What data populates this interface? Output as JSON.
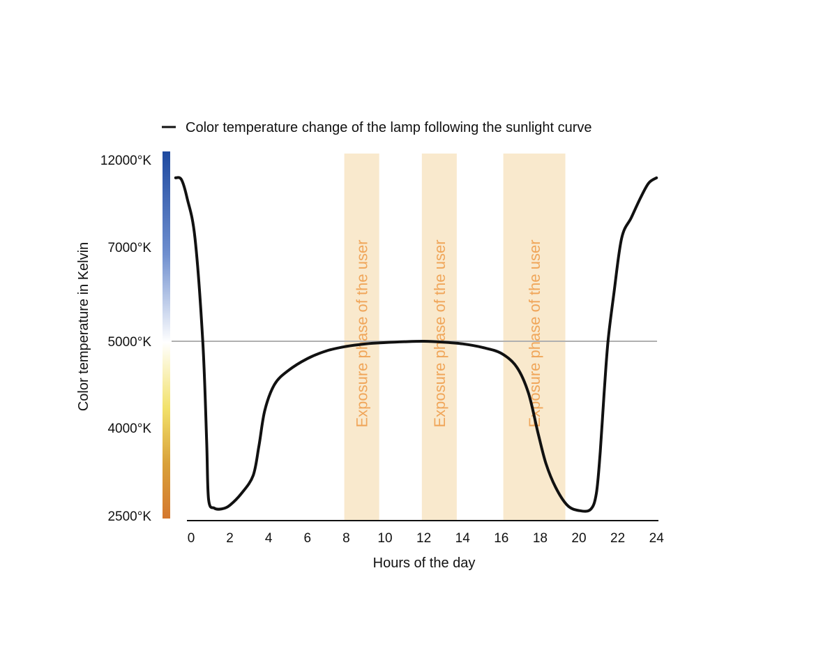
{
  "chart_data": {
    "type": "line",
    "legend": {
      "label": "Color temperature change of the lamp following the sunlight curve",
      "placement": "top-left",
      "color": "#111111"
    },
    "xlabel": "Hours of the day",
    "ylabel": "Color temperature  in Kelvin",
    "xlim": [
      -0.8,
      24
    ],
    "x_ticks": [
      "0",
      "2",
      "4",
      "6",
      "8",
      "10",
      "12",
      "14",
      "16",
      "18",
      "20",
      "22",
      "24"
    ],
    "y_ticks": [
      {
        "label": "12000°K",
        "value": 12000
      },
      {
        "label": "7000°K",
        "value": 7000
      },
      {
        "label": "5000°K",
        "value": 5000
      },
      {
        "label": "4000°K",
        "value": 4000
      },
      {
        "label": "2500°K",
        "value": 2500
      }
    ],
    "reference_line": {
      "value": 5000,
      "color": "#b0b0b0"
    },
    "temperature_scale_colors": [
      "#1f4aa0",
      "#6f8fcf",
      "#ffffff",
      "#f2e16a",
      "#d9a13a",
      "#d4782f"
    ],
    "highlight_bands": [
      {
        "label": "Exposure phase of the user",
        "x_start": 7.9,
        "x_end": 9.7,
        "color": "#f9e9cd"
      },
      {
        "label": "Exposure phase of the user",
        "x_start": 11.9,
        "x_end": 13.7,
        "color": "#f9e9cd"
      },
      {
        "label": "Exposure phase of the user",
        "x_start": 16.1,
        "x_end": 19.3,
        "color": "#f9e9cd"
      }
    ],
    "series": [
      {
        "color": "#111111",
        "points": [
          [
            -0.8,
            11000
          ],
          [
            -0.5,
            10900
          ],
          [
            -0.2,
            9800
          ],
          [
            0.2,
            7500
          ],
          [
            0.6,
            5000
          ],
          [
            0.8,
            3800
          ],
          [
            0.9,
            2800
          ],
          [
            1.2,
            2650
          ],
          [
            1.6,
            2640
          ],
          [
            2.0,
            2700
          ],
          [
            2.6,
            2900
          ],
          [
            3.2,
            3200
          ],
          [
            3.5,
            3700
          ],
          [
            3.8,
            4200
          ],
          [
            4.3,
            4500
          ],
          [
            5.0,
            4660
          ],
          [
            6.0,
            4800
          ],
          [
            7.0,
            4890
          ],
          [
            8.0,
            4940
          ],
          [
            9.0,
            4970
          ],
          [
            10.0,
            4985
          ],
          [
            11.0,
            4995
          ],
          [
            12.0,
            5000
          ],
          [
            13.0,
            4990
          ],
          [
            14.0,
            4970
          ],
          [
            15.0,
            4930
          ],
          [
            16.0,
            4860
          ],
          [
            16.8,
            4700
          ],
          [
            17.4,
            4400
          ],
          [
            17.9,
            3900
          ],
          [
            18.3,
            3400
          ],
          [
            18.8,
            3000
          ],
          [
            19.4,
            2700
          ],
          [
            20.0,
            2610
          ],
          [
            20.6,
            2630
          ],
          [
            20.9,
            2900
          ],
          [
            21.1,
            3600
          ],
          [
            21.3,
            4400
          ],
          [
            21.5,
            5000
          ],
          [
            21.8,
            6000
          ],
          [
            22.2,
            7500
          ],
          [
            22.7,
            8700
          ],
          [
            23.2,
            9900
          ],
          [
            23.6,
            10700
          ],
          [
            24.0,
            11000
          ]
        ]
      }
    ]
  }
}
